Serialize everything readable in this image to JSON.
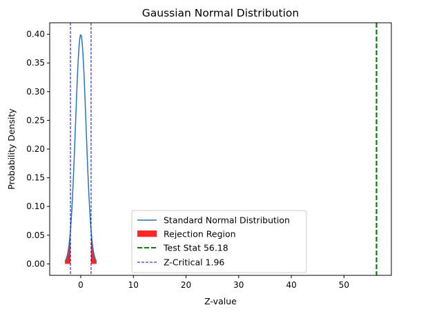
{
  "chart_data": {
    "type": "line",
    "title": "Gaussian Normal Distribution",
    "xlabel": "Z-value",
    "ylabel": "Probability Density",
    "xlim": [
      -5.9,
      59.0
    ],
    "ylim": [
      -0.02,
      0.42
    ],
    "x_ticks": [
      0,
      10,
      20,
      30,
      40,
      50
    ],
    "y_ticks": [
      0.0,
      0.05,
      0.1,
      0.15,
      0.2,
      0.25,
      0.3,
      0.35,
      0.4
    ],
    "grid": false,
    "legend_position": "lower-center",
    "curve_domain": [
      -3,
      3
    ],
    "series": [
      {
        "name": "Standard Normal Distribution",
        "kind": "normal-pdf",
        "mean": 0,
        "std": 1,
        "color": "#1f77b4"
      }
    ],
    "rejection_region": {
      "name": "Rejection Region",
      "color": "#ff0000",
      "ranges": [
        [
          -3,
          -1.96
        ],
        [
          1.96,
          3
        ]
      ]
    },
    "test_stat": {
      "name": "Test Stat 56.18",
      "value": 56.18,
      "color": "#008000"
    },
    "z_critical": {
      "name": "Z-Critical 1.96",
      "values": [
        -1.96,
        1.96
      ],
      "color": "#0000ff"
    }
  }
}
